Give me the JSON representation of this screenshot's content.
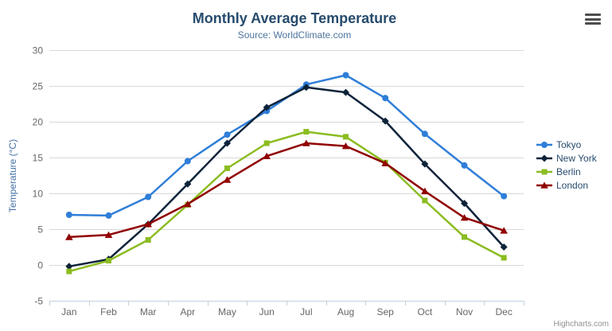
{
  "chart": {
    "title": "Monthly Average Temperature",
    "subtitle": "Source: WorldClimate.com",
    "y_axis_title": "Temperature (°C)",
    "credits": "Highcharts.com",
    "context_menu_icon": "hamburger-icon"
  },
  "colors": {
    "title": "#274b6d",
    "subtitle": "#4d759e",
    "axis_title": "#4572a7",
    "axis_labels": "#666666",
    "grid_line": "#d8d8d8",
    "axis_line": "#c0d0e0",
    "legend_text": "#274b6d",
    "credits_text": "#909090"
  },
  "chart_data": {
    "type": "line",
    "categories": [
      "Jan",
      "Feb",
      "Mar",
      "Apr",
      "May",
      "Jun",
      "Jul",
      "Aug",
      "Sep",
      "Oct",
      "Nov",
      "Dec"
    ],
    "series": [
      {
        "name": "Tokyo",
        "color": "#2f7ed8",
        "marker": "circle",
        "values": [
          7.0,
          6.9,
          9.5,
          14.5,
          18.2,
          21.5,
          25.2,
          26.5,
          23.3,
          18.3,
          13.9,
          9.6
        ]
      },
      {
        "name": "New York",
        "color": "#0d233a",
        "marker": "diamond",
        "values": [
          -0.2,
          0.8,
          5.7,
          11.3,
          17.0,
          22.0,
          24.8,
          24.1,
          20.1,
          14.1,
          8.6,
          2.5
        ]
      },
      {
        "name": "Berlin",
        "color": "#8bbc21",
        "marker": "square",
        "values": [
          -0.9,
          0.6,
          3.5,
          8.4,
          13.5,
          17.0,
          18.6,
          17.9,
          14.3,
          9.0,
          3.9,
          1.0
        ]
      },
      {
        "name": "London",
        "color": "#910000",
        "marker": "triangle",
        "values": [
          3.9,
          4.2,
          5.7,
          8.5,
          11.9,
          15.2,
          17.0,
          16.6,
          14.2,
          10.3,
          6.6,
          4.8
        ]
      }
    ],
    "title": "Monthly Average Temperature",
    "subtitle": "Source: WorldClimate.com",
    "xlabel": "",
    "ylabel": "Temperature (°C)",
    "ylim": [
      -5,
      30
    ],
    "y_tick_interval": 5,
    "grid": true,
    "legend_position": "right"
  }
}
